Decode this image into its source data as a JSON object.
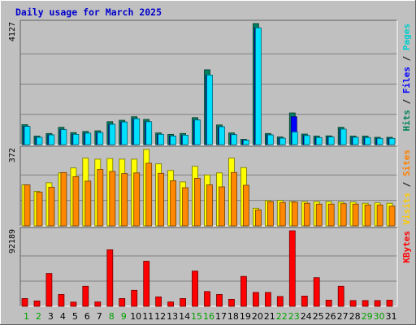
{
  "chart_data": {
    "type": "bar",
    "title": "Daily usage for March 2025",
    "categories": [
      "1",
      "2",
      "3",
      "4",
      "5",
      "6",
      "7",
      "8",
      "9",
      "10",
      "11",
      "12",
      "13",
      "14",
      "15",
      "16",
      "17",
      "18",
      "19",
      "20",
      "21",
      "22",
      "23",
      "24",
      "25",
      "26",
      "27",
      "28",
      "29",
      "30",
      "31"
    ],
    "weekend_days": [
      "1",
      "2",
      "8",
      "9",
      "15",
      "16",
      "22",
      "23",
      "29",
      "30"
    ],
    "day_colors": {
      "weekday": "#000000",
      "weekend": "#00a000"
    },
    "panels": [
      {
        "id": "hits-files-pages",
        "max_label": "4127",
        "ylim": [
          0,
          4127
        ],
        "legend": [
          {
            "label": "Pages",
            "color": "#00cccc"
          },
          {
            "label": "Files",
            "color": "#0000ff"
          },
          {
            "label": "Hits",
            "color": "#00805a"
          }
        ],
        "series": [
          {
            "name": "Hits",
            "color": "#008060",
            "values": [
              680,
              290,
              380,
              590,
              410,
              450,
              470,
              780,
              830,
              950,
              860,
              400,
              350,
              380,
              920,
              2550,
              670,
              400,
              180,
              4127,
              380,
              260,
              1080,
              360,
              290,
              300,
              590,
              290,
              290,
              250,
              250
            ]
          },
          {
            "name": "Files",
            "color": "#0000ff",
            "values": [
              620,
              250,
              330,
              510,
              350,
              390,
              410,
              690,
              770,
              880,
              780,
              350,
              290,
              320,
              840,
              2370,
              610,
              340,
              150,
              3980,
              330,
              220,
              950,
              310,
              240,
              260,
              530,
              250,
              240,
              210,
              210
            ]
          },
          {
            "name": "Pages",
            "color": "#00e0ff",
            "values": [
              620,
              250,
              330,
              510,
              350,
              390,
              410,
              690,
              770,
              880,
              780,
              350,
              290,
              320,
              840,
              2370,
              610,
              340,
              150,
              3980,
              330,
              220,
              430,
              310,
              240,
              260,
              530,
              250,
              240,
              210,
              210
            ]
          }
        ]
      },
      {
        "id": "visits-sites",
        "max_label": "372",
        "ylim": [
          0,
          372
        ],
        "legend": [
          {
            "label": "Sites",
            "color": "#ff8000"
          },
          {
            "label": "Visits",
            "color": "#ffcc00"
          }
        ],
        "series": [
          {
            "name": "Visits",
            "color": "#ffff00",
            "values": [
              200,
              168,
              210,
              258,
              282,
              330,
              325,
              328,
              325,
              325,
              372,
              302,
              270,
              214,
              290,
              248,
              258,
              330,
              284,
              86,
              123,
              124,
              118,
              118,
              118,
              118,
              116,
              116,
              110,
              112,
              110
            ]
          },
          {
            "name": "Sites",
            "color": "#ff8800",
            "values": [
              200,
              164,
              188,
              260,
              240,
              218,
              275,
              265,
              255,
              258,
              305,
              256,
              220,
              186,
              232,
              200,
              190,
              260,
              198,
              78,
              118,
              114,
              116,
              110,
              106,
              106,
              108,
              106,
              102,
              102,
              96
            ]
          }
        ]
      },
      {
        "id": "kbytes",
        "max_label": "92189",
        "ylim": [
          0,
          92189
        ],
        "legend": [
          {
            "label": "KBytes",
            "color": "#ff0000"
          }
        ],
        "series": [
          {
            "name": "KBytes",
            "color": "#ff0000",
            "values": [
              9500,
              6500,
              40000,
              14500,
              5200,
              24500,
              5400,
              69000,
              9500,
              19500,
              55000,
              11500,
              5400,
              9500,
              43000,
              18000,
              14500,
              8500,
              36500,
              17000,
              17000,
              12000,
              92189,
              12500,
              35000,
              7500,
              24500,
              7000,
              7000,
              7000,
              7500
            ]
          }
        ]
      }
    ]
  }
}
